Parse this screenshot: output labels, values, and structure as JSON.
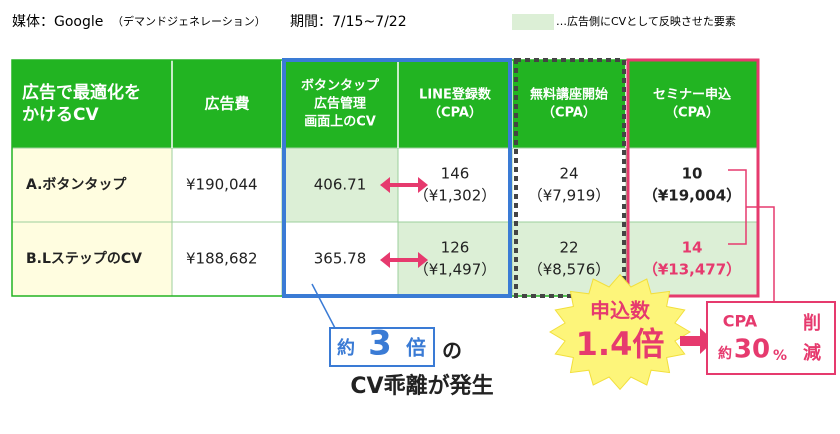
{
  "header": {
    "media": "媒体：Google",
    "media_note": "（デマンドジェネレーション）",
    "period": "期間：7/15~7/22",
    "legend": "…広告側にCVとして反映させた要素"
  },
  "table": {
    "columns": [
      [
        "広告で最適化を",
        "かけるCV"
      ],
      [
        "広告費"
      ],
      [
        "ボタンタップ",
        "広告管理",
        "画面上のCV"
      ],
      [
        "LINE登録数",
        "（CPA）"
      ],
      [
        "無料講座開始",
        "（CPA）"
      ],
      [
        "セミナー申込",
        "（CPA）"
      ]
    ],
    "rows": [
      [
        [
          "A.ボタンタップ"
        ],
        [
          "¥190,044"
        ],
        [
          "406.71"
        ],
        [
          "146",
          "（¥1,302）"
        ],
        [
          "24",
          "（¥7,919）"
        ],
        [
          "10",
          "（¥19,004）"
        ]
      ],
      [
        [
          "B.LステップのCV"
        ],
        [
          "¥188,682"
        ],
        [
          "365.78"
        ],
        [
          "126",
          "（¥1,497）"
        ],
        [
          "22",
          "（¥8,576）"
        ],
        [
          "14",
          "（¥13,477）"
        ]
      ]
    ]
  },
  "callouts": {
    "gap_prefix": "約",
    "gap_value": "3",
    "gap_unit": "倍",
    "gap_particle": "の",
    "gap_text": "CV乖離が発生",
    "burst_label": "申込数",
    "burst_value": "1.4倍",
    "cpa_label": "CPA",
    "cpa_prefix": "約",
    "cpa_value": "30",
    "cpa_unit": "%",
    "cpa_suffix_1": "削",
    "cpa_suffix_2": "減"
  }
}
